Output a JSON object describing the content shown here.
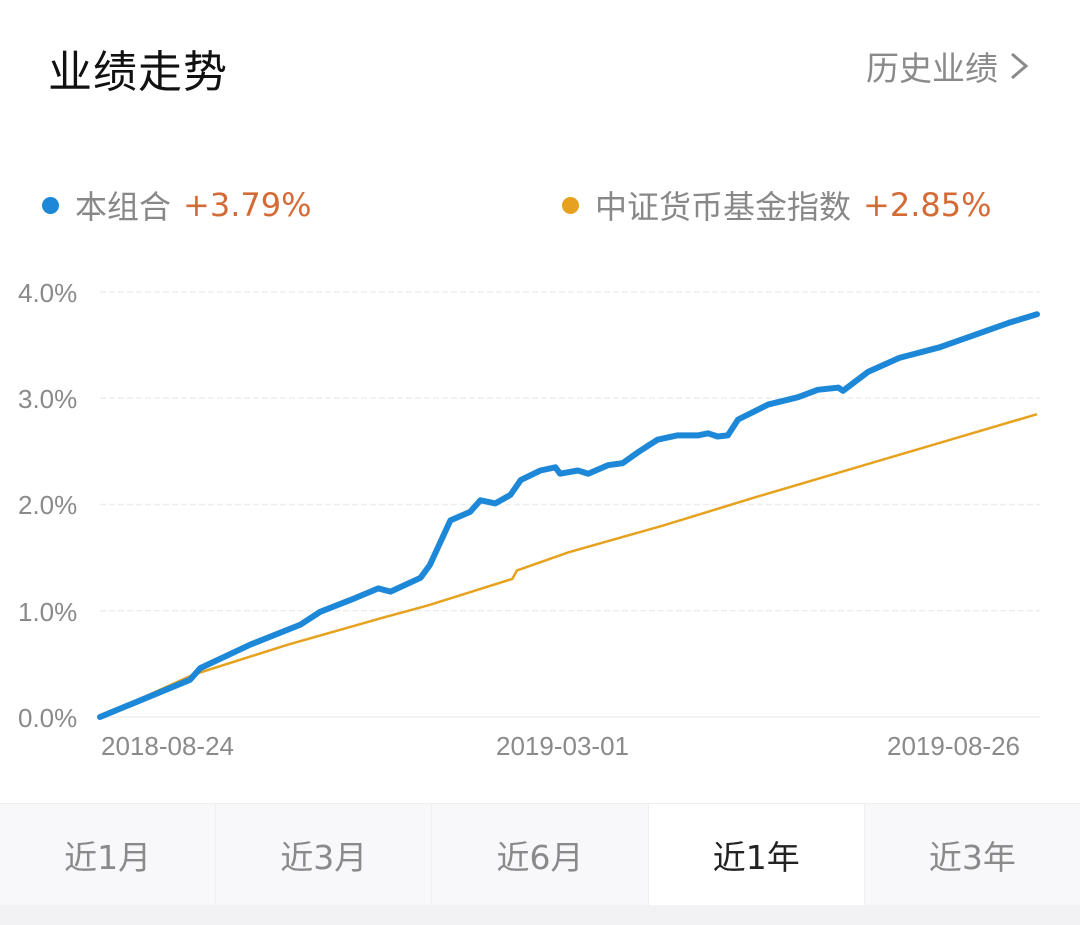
{
  "header": {
    "title": "业绩走势",
    "history_link": "历史业绩",
    "history_icon": "chevron-right-icon"
  },
  "legend": [
    {
      "name": "本组合",
      "value": "+3.79%",
      "color": "#1e88d8"
    },
    {
      "name": "中证货币基金指数",
      "value": "+2.85%",
      "color": "#e6a21e"
    }
  ],
  "colors": {
    "accent_value": "#d46b36",
    "tab_active_text": "#222222",
    "tab_text": "#8a8a8a"
  },
  "chart_data": {
    "type": "line",
    "title": "业绩走势",
    "xlabel": "",
    "ylabel": "",
    "ylim": [
      0,
      4.0
    ],
    "yticks": [
      "0.0%",
      "1.0%",
      "2.0%",
      "3.0%",
      "4.0%"
    ],
    "xticks": [
      "2018-08-24",
      "2019-03-01",
      "2019-08-26"
    ],
    "grid": true,
    "legend_position": "top",
    "x_range": [
      "2018-08-24",
      "2019-08-26"
    ],
    "series": [
      {
        "name": "本组合",
        "final_value": 3.79,
        "color": "#1e88d8",
        "x": [
          0,
          0.096,
          0.107,
          0.16,
          0.214,
          0.235,
          0.267,
          0.297,
          0.31,
          0.342,
          0.352,
          0.374,
          0.395,
          0.406,
          0.422,
          0.438,
          0.449,
          0.47,
          0.486,
          0.491,
          0.51,
          0.521,
          0.542,
          0.558,
          0.574,
          0.595,
          0.616,
          0.638,
          0.649,
          0.659,
          0.67,
          0.681,
          0.713,
          0.745,
          0.766,
          0.788,
          0.793,
          0.82,
          0.853,
          0.896,
          0.938,
          0.97,
          1.0
        ],
        "values": [
          0.0,
          0.35,
          0.46,
          0.68,
          0.87,
          0.99,
          1.1,
          1.21,
          1.18,
          1.31,
          1.43,
          1.85,
          1.93,
          2.04,
          2.01,
          2.09,
          2.23,
          2.32,
          2.35,
          2.29,
          2.32,
          2.29,
          2.37,
          2.39,
          2.49,
          2.61,
          2.65,
          2.65,
          2.67,
          2.64,
          2.65,
          2.8,
          2.94,
          3.01,
          3.08,
          3.1,
          3.07,
          3.25,
          3.38,
          3.48,
          3.61,
          3.71,
          3.79
        ]
      },
      {
        "name": "中证货币基金指数",
        "final_value": 2.85,
        "color": "#e6a21e",
        "x": [
          0,
          0.1,
          0.2,
          0.3,
          0.35,
          0.44,
          0.445,
          0.5,
          0.6,
          0.7,
          0.8,
          0.9,
          1.0
        ],
        "values": [
          0.0,
          0.4,
          0.68,
          0.93,
          1.05,
          1.3,
          1.38,
          1.55,
          1.8,
          2.07,
          2.33,
          2.59,
          2.85
        ]
      }
    ]
  },
  "tabs": [
    {
      "label": "近1月",
      "active": false
    },
    {
      "label": "近3月",
      "active": false
    },
    {
      "label": "近6月",
      "active": false
    },
    {
      "label": "近1年",
      "active": true
    },
    {
      "label": "近3年",
      "active": false
    }
  ]
}
